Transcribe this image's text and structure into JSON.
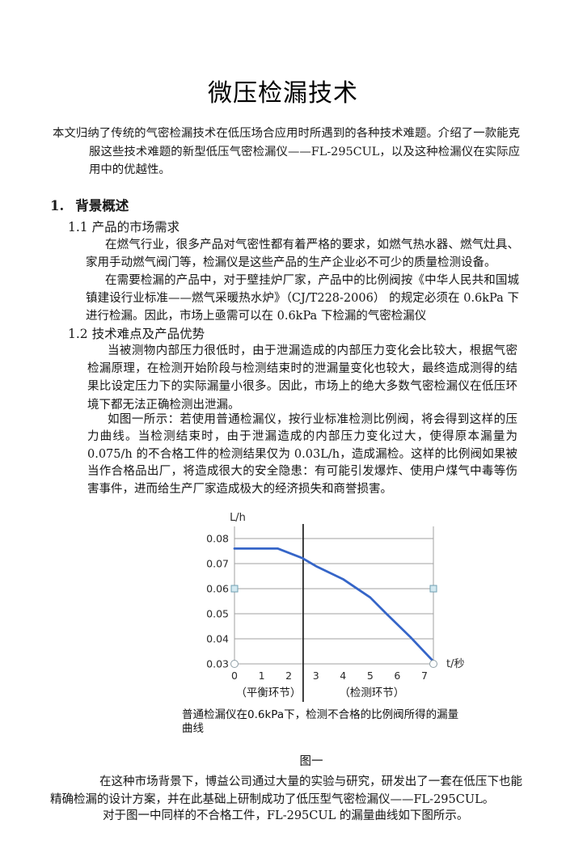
{
  "document": {
    "title": "微压检漏技术",
    "abstract": "本文归纳了传统的气密检漏技术在低压场合应用时所遇到的各种技术难题。介绍了一款能克服这些技术难题的新型低压气密检漏仪——FL-295CUL，以及这种检漏仪在实际应用中的优越性。",
    "section1": {
      "number": "1.",
      "heading": "背景概述",
      "sub1": {
        "heading": "1.1 产品的市场需求",
        "para1": "在燃气行业，很多产品对气密性都有着严格的要求，如燃气热水器、燃气灶具、家用手动燃气阀门等，检漏仪是这些产品的生产企业必不可少的质量检测设备。",
        "para2": "在需要检漏的产品中，对于壁挂炉厂家，产品中的比例阀按《中华人民共和国城镇建设行业标准——燃气采暖热水炉》（CJ/T228-2006） 的规定必须在 0.6kPa 下进行检漏。因此，市场上亟需可以在 0.6kPa 下检漏的气密检漏仪"
      },
      "sub2": {
        "heading": "1.2 技术难点及产品优势",
        "para1": "当被测物内部压力很低时，由于泄漏造成的内部压力变化会比较大，根据气密检漏原理，在检测开始阶段与检测结束时的泄漏量变化也较大，最终造成测得的结果比设定压力下的实际漏量小很多。因此，市场上的绝大多数气密检漏仪在低压环境下都无法正确检测出泄漏。",
        "para2": "如图一所示：若使用普通检漏仪，按行业标准检测比例阀，将会得到这样的压力曲线。当检测结束时，由于泄漏造成的内部压力变化过大，使得原本漏量为 0.075/h 的不合格工件的检测结果仅为 0.03L/h，造成漏检。这样的比例阀如果被当作合格品出厂，将造成很大的安全隐患：有可能引发爆炸、使用户煤气中毒等伤害事件，进而给生产厂家造成极大的经济损失和商誉损害。"
      }
    },
    "figure1": {
      "caption": "普通检漏仪在0.6kPa下，检测不合格的比例阀所得的漏量曲线",
      "label": "图一"
    },
    "closing": {
      "para1": "在这种市场背景下，博益公司通过大量的实验与研究，研发出了一套在低压下也能精确检漏的设计方案，并在此基础上研制成功了低压型气密检漏仪——FL-295CUL。",
      "para2": "对于图一中同样的不合格工件，FL-295CUL 的漏量曲线如下图所示。"
    }
  },
  "chart_data": {
    "type": "line",
    "title": "",
    "ylabel": "L/h",
    "xlabel": "t/秒",
    "xlim": [
      0,
      7.33
    ],
    "ylim": [
      0.03,
      0.08
    ],
    "xticks": [
      0,
      1,
      2,
      3,
      4,
      5,
      6,
      7
    ],
    "yticks": [
      0.03,
      0.04,
      0.05,
      0.06,
      0.07,
      0.08
    ],
    "grid": true,
    "grid_color": "#a0a0a0",
    "divider_x": 2.53,
    "divider_color": "#2b2b2b",
    "phase_labels": [
      {
        "text": "（平衡环节）",
        "x": 1.25
      },
      {
        "text": "（检测环节）",
        "x": 5.06
      }
    ],
    "series": [
      {
        "name": "漏量曲线",
        "color": "#3565c8",
        "x": [
          0,
          1.6,
          2.5,
          3,
          4,
          5,
          5.6,
          6.5,
          7.33
        ],
        "y": [
          0.076,
          0.076,
          0.0722,
          0.069,
          0.0638,
          0.0565,
          0.05,
          0.0405,
          0.031
        ]
      }
    ],
    "edge_markers": [
      {
        "shape": "square",
        "y": 0.06,
        "fill": "#d2e8f0",
        "stroke": "#6f9fb2"
      },
      {
        "shape": "circle",
        "y": 0.03,
        "fill": "#fbfdfd",
        "stroke": "#909fa6"
      }
    ]
  }
}
